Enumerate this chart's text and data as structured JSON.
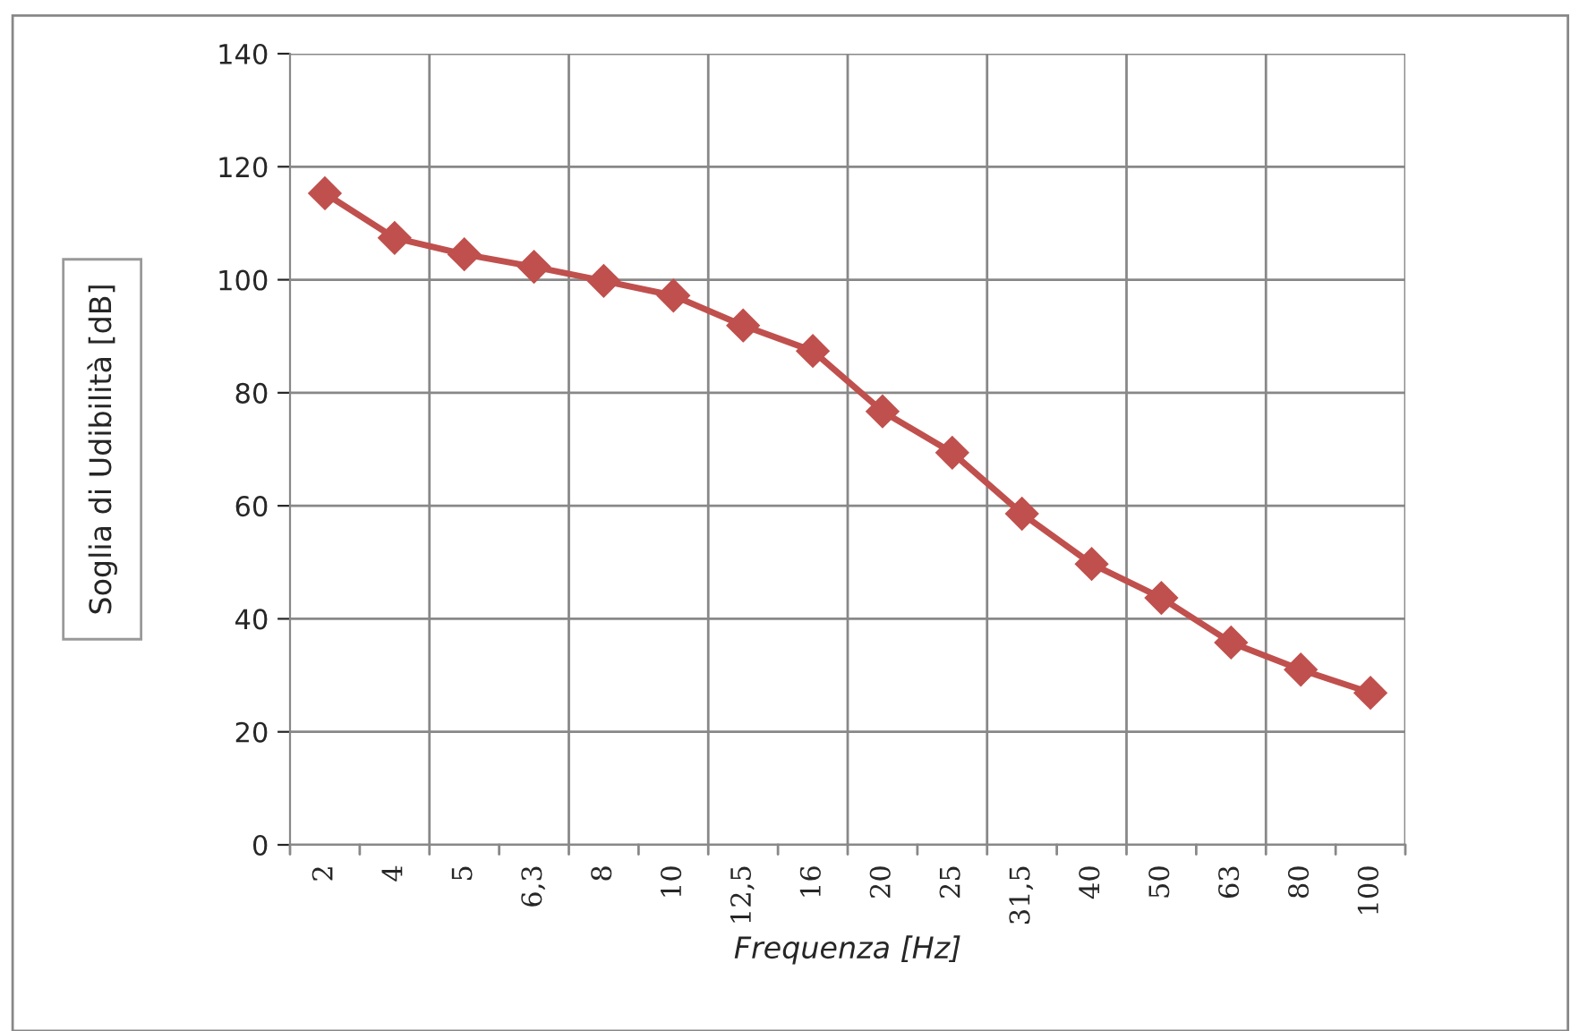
{
  "chart_data": {
    "type": "line",
    "xlabel": "Frequenza [Hz]",
    "ylabel": "Soglia di Udibilità [dB]",
    "categories": [
      "2",
      "4",
      "5",
      "6,3",
      "8",
      "10",
      "12,5",
      "16",
      "20",
      "25",
      "31,5",
      "40",
      "50",
      "63",
      "80",
      "100"
    ],
    "series": [
      {
        "color": "#c0504d",
        "values": [
          115.3,
          107.4,
          104.5,
          102.3,
          99.8,
          97.2,
          91.9,
          87.4,
          76.7,
          69.4,
          58.6,
          49.7,
          43.7,
          35.8,
          31.0,
          26.9
        ]
      }
    ],
    "ylim": [
      0,
      140
    ],
    "yticks": [
      0,
      20,
      40,
      60,
      80,
      100,
      120,
      140
    ],
    "grid": true,
    "marker": "diamond",
    "line_style": "solid"
  }
}
